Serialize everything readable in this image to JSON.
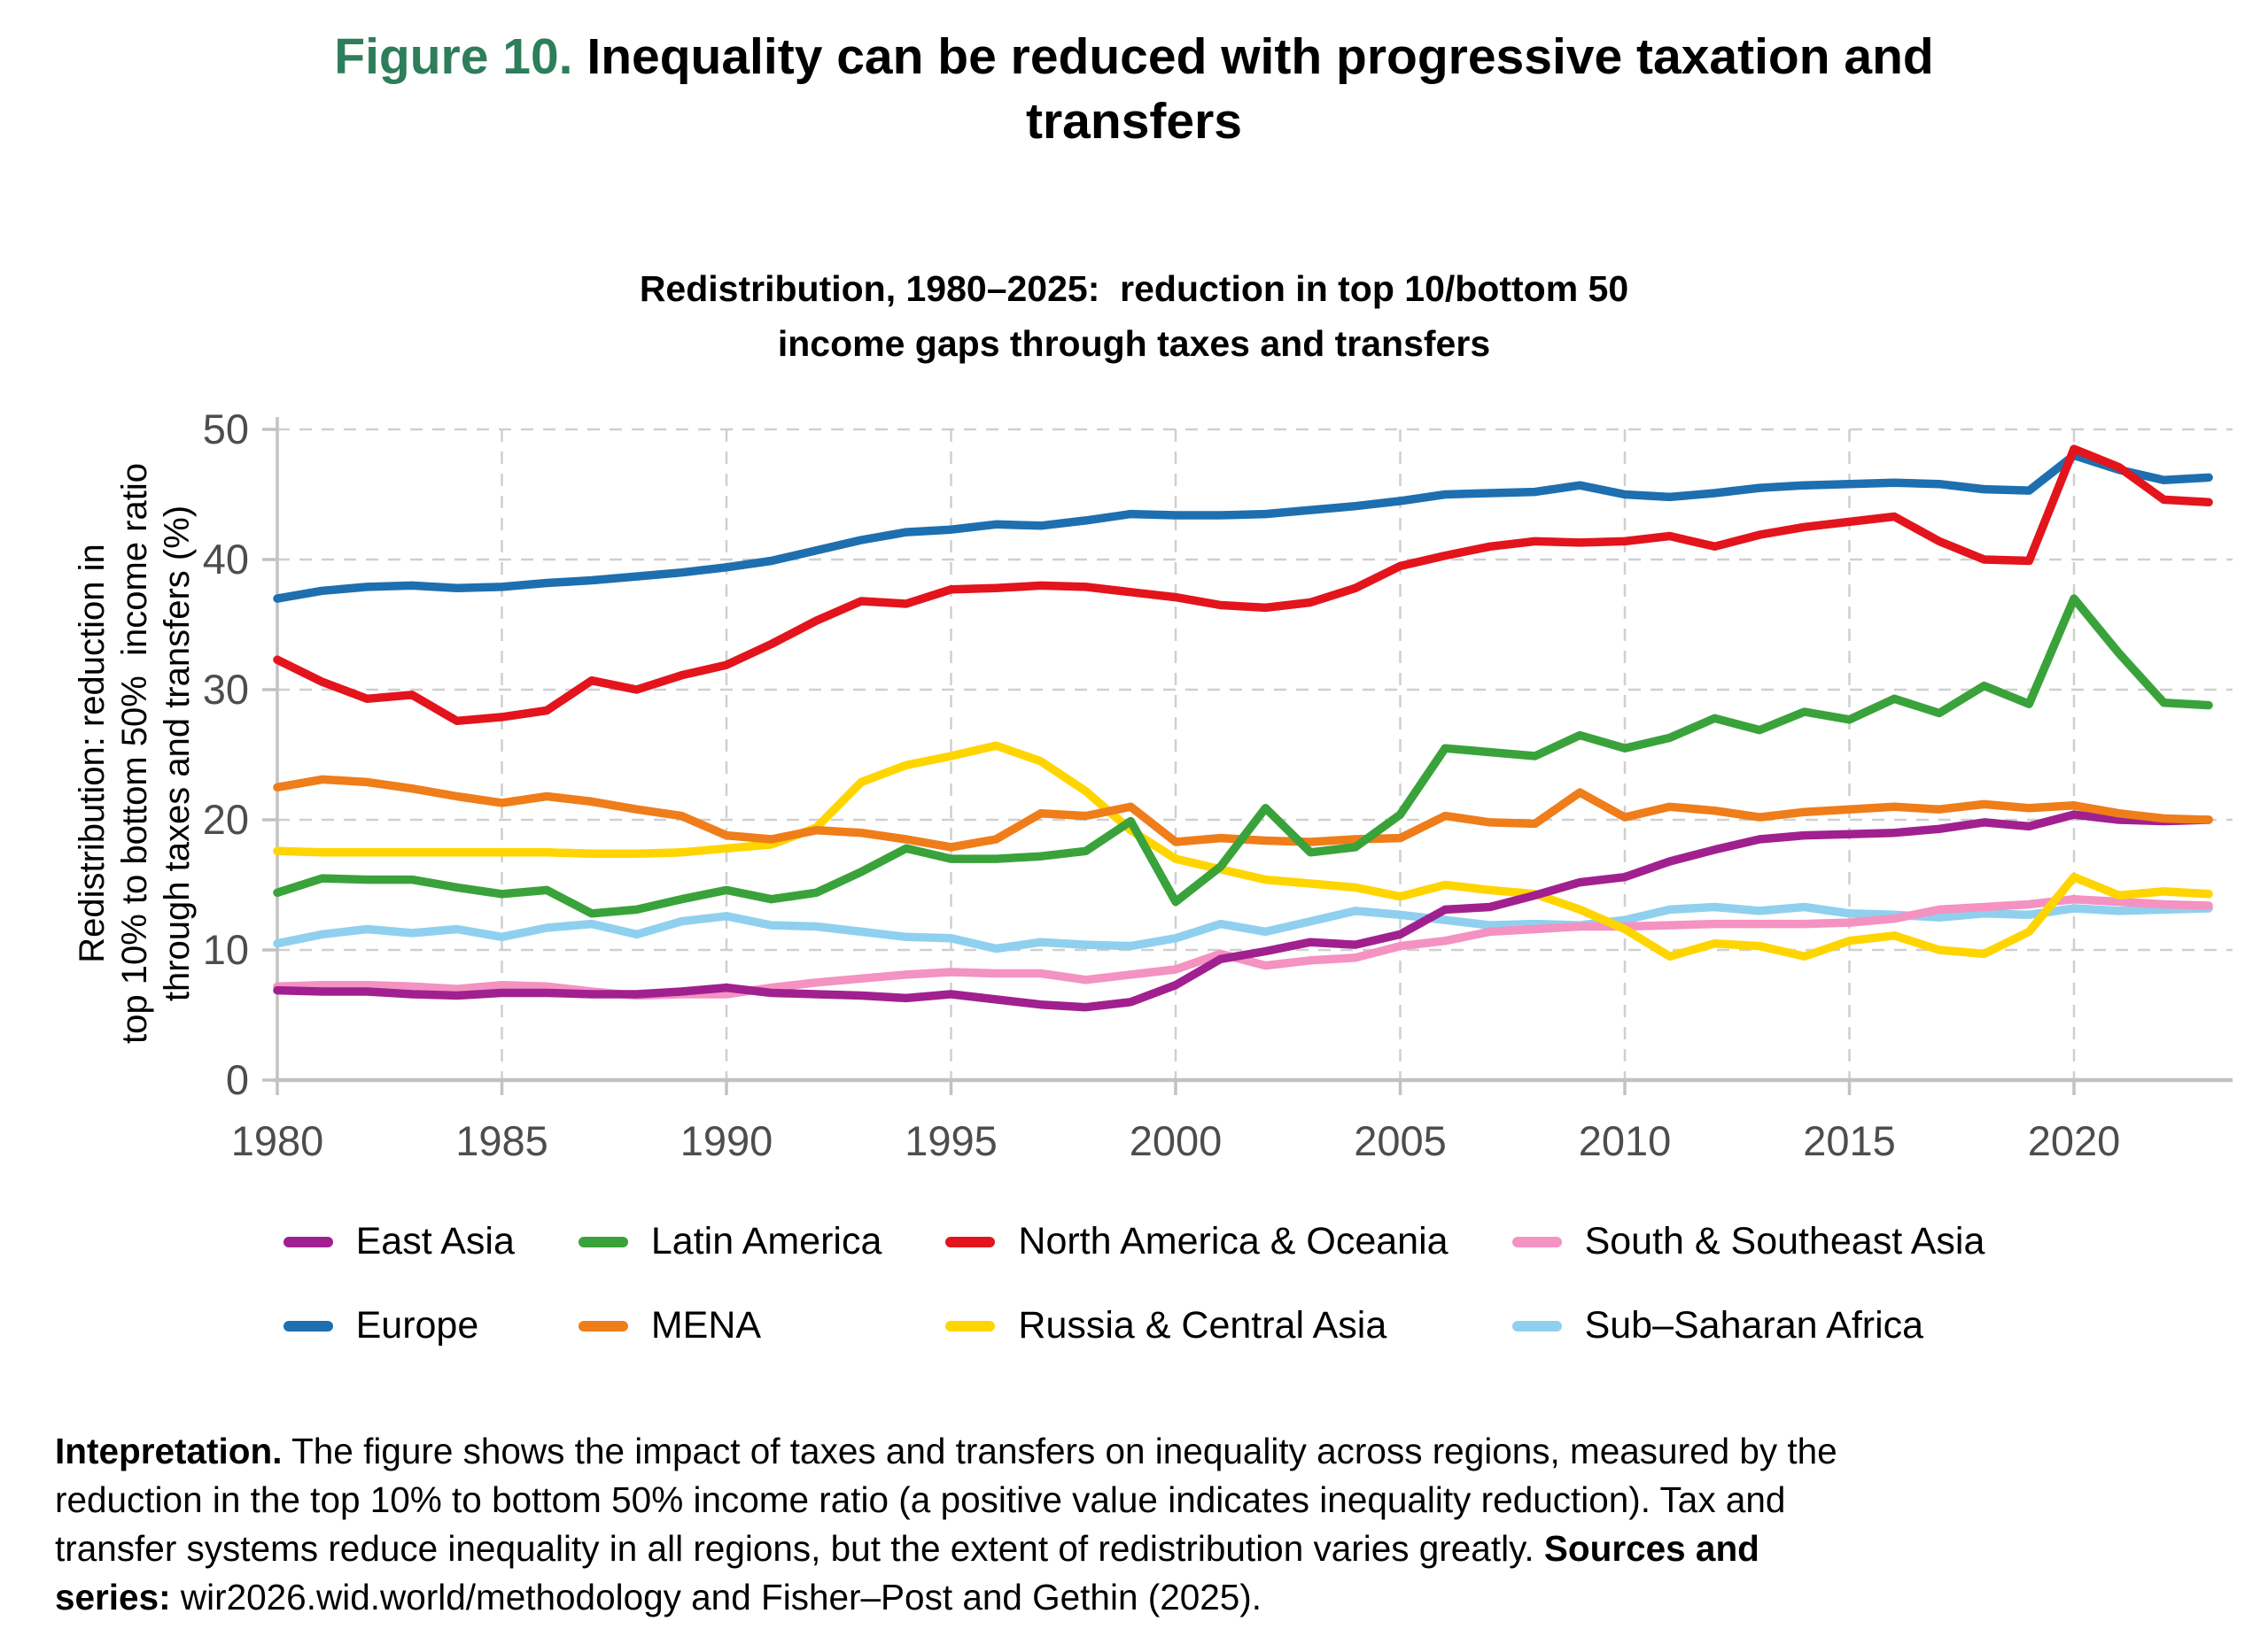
{
  "figure": {
    "label": "Figure 10.",
    "title_rest": " Inequality can be reduced with progressive taxation and\ntransfers",
    "label_color": "#2e7d5b"
  },
  "chart_data": {
    "type": "line",
    "title": "Redistribution, 1980–2025:  reduction in top 10/bottom 50\nincome gaps through taxes and transfers",
    "xlabel": "",
    "ylabel": "Redistribution: reduction in\ntop 10% to bottom 50%  income ratio\nthrough taxes and transfers (%)",
    "xlim": [
      1980,
      2023.5
    ],
    "ylim": [
      0,
      50
    ],
    "x_ticks": [
      1980,
      1985,
      1990,
      1995,
      2000,
      2005,
      2010,
      2015,
      2020
    ],
    "y_ticks": [
      0,
      10,
      20,
      30,
      40,
      50
    ],
    "grid": "dashed",
    "legend_position": "bottom",
    "colors": {
      "grid": "#cfcfcf",
      "axis": "#c2c2c2",
      "tick_label": "#4d4d4d"
    },
    "years": [
      1980,
      1981,
      1982,
      1983,
      1984,
      1985,
      1986,
      1987,
      1988,
      1989,
      1990,
      1991,
      1992,
      1993,
      1994,
      1995,
      1996,
      1997,
      1998,
      1999,
      2000,
      2001,
      2002,
      2003,
      2004,
      2005,
      2006,
      2007,
      2008,
      2009,
      2010,
      2011,
      2012,
      2013,
      2014,
      2015,
      2016,
      2017,
      2018,
      2019,
      2020,
      2021,
      2022,
      2023
    ],
    "series": [
      {
        "name": "East Asia",
        "color": "#a1208f",
        "values": [
          6.9,
          6.8,
          6.8,
          6.6,
          6.5,
          6.7,
          6.7,
          6.6,
          6.6,
          6.8,
          7.1,
          6.7,
          6.6,
          6.5,
          6.3,
          6.6,
          6.2,
          5.8,
          5.6,
          6.0,
          7.3,
          9.3,
          9.9,
          10.6,
          10.4,
          11.2,
          13.1,
          13.3,
          14.2,
          15.2,
          15.6,
          16.8,
          17.7,
          18.5,
          18.8,
          18.9,
          19.0,
          19.3,
          19.8,
          19.5,
          20.4,
          20.0,
          19.9,
          20.0
        ]
      },
      {
        "name": "Europe",
        "color": "#1d6fb0",
        "values": [
          37.0,
          37.6,
          37.9,
          38.0,
          37.8,
          37.9,
          38.2,
          38.4,
          38.7,
          39.0,
          39.4,
          39.9,
          40.7,
          41.5,
          42.1,
          42.3,
          42.7,
          42.6,
          43.0,
          43.5,
          43.4,
          43.4,
          43.5,
          43.8,
          44.1,
          44.5,
          45.0,
          45.1,
          45.2,
          45.7,
          45.0,
          44.8,
          45.1,
          45.5,
          45.7,
          45.8,
          45.9,
          45.8,
          45.4,
          45.3,
          48.0,
          46.9,
          46.1,
          46.3
        ]
      },
      {
        "name": "Latin America",
        "color": "#3aa23a",
        "values": [
          14.4,
          15.5,
          15.4,
          15.4,
          14.8,
          14.3,
          14.6,
          12.8,
          13.1,
          13.9,
          14.6,
          13.9,
          14.4,
          16.0,
          17.8,
          17.0,
          17.0,
          17.2,
          17.6,
          19.9,
          13.7,
          16.4,
          20.9,
          17.5,
          17.9,
          20.4,
          25.5,
          25.2,
          24.9,
          26.5,
          25.5,
          26.3,
          27.8,
          26.9,
          28.3,
          27.7,
          29.3,
          28.2,
          30.3,
          28.9,
          37.0,
          32.8,
          29.0,
          28.8
        ]
      },
      {
        "name": "MENA",
        "color": "#ef7d1a",
        "values": [
          22.5,
          23.1,
          22.9,
          22.4,
          21.8,
          21.3,
          21.8,
          21.4,
          20.8,
          20.3,
          18.8,
          18.5,
          19.2,
          19.0,
          18.5,
          17.9,
          18.5,
          20.5,
          20.3,
          21.0,
          18.3,
          18.6,
          18.4,
          18.3,
          18.5,
          18.6,
          20.3,
          19.8,
          19.7,
          22.1,
          20.2,
          21.0,
          20.7,
          20.2,
          20.6,
          20.8,
          21.0,
          20.8,
          21.2,
          20.9,
          21.1,
          20.5,
          20.1,
          20.0
        ]
      },
      {
        "name": "North America & Oceania",
        "color": "#e3141c",
        "values": [
          32.3,
          30.6,
          29.3,
          29.6,
          27.6,
          27.9,
          28.4,
          30.7,
          30.0,
          31.1,
          31.9,
          33.5,
          35.3,
          36.8,
          36.6,
          37.7,
          37.8,
          38.0,
          37.9,
          37.5,
          37.1,
          36.5,
          36.3,
          36.7,
          37.8,
          39.5,
          40.3,
          41.0,
          41.4,
          41.3,
          41.4,
          41.8,
          41.0,
          41.9,
          42.5,
          42.9,
          43.3,
          41.4,
          40.0,
          39.9,
          48.5,
          47.1,
          44.6,
          44.4
        ]
      },
      {
        "name": "Russia & Central Asia",
        "color": "#ffd500",
        "values": [
          17.6,
          17.5,
          17.5,
          17.5,
          17.5,
          17.5,
          17.5,
          17.4,
          17.4,
          17.5,
          17.8,
          18.1,
          19.4,
          22.9,
          24.2,
          24.9,
          25.7,
          24.5,
          22.2,
          19.2,
          17.0,
          16.2,
          15.4,
          15.1,
          14.8,
          14.1,
          15.0,
          14.6,
          14.3,
          13.1,
          11.6,
          9.5,
          10.5,
          10.3,
          9.5,
          10.7,
          11.1,
          10.0,
          9.7,
          11.4,
          15.6,
          14.2,
          14.5,
          14.3
        ]
      },
      {
        "name": "South & Southeast Asia",
        "color": "#f492c2",
        "values": [
          7.2,
          7.3,
          7.3,
          7.2,
          7.0,
          7.3,
          7.2,
          6.8,
          6.5,
          6.6,
          6.6,
          7.1,
          7.5,
          7.8,
          8.1,
          8.3,
          8.2,
          8.2,
          7.7,
          8.1,
          8.5,
          9.7,
          8.8,
          9.2,
          9.4,
          10.3,
          10.7,
          11.4,
          11.6,
          11.8,
          11.8,
          11.9,
          12.0,
          12.0,
          12.0,
          12.1,
          12.4,
          13.1,
          13.3,
          13.5,
          13.9,
          13.7,
          13.5,
          13.4
        ]
      },
      {
        "name": "Sub–Saharan Africa",
        "color": "#8fd0ee",
        "values": [
          10.5,
          11.2,
          11.6,
          11.3,
          11.6,
          11.0,
          11.7,
          12.0,
          11.2,
          12.2,
          12.6,
          11.9,
          11.8,
          11.4,
          11.0,
          10.9,
          10.1,
          10.6,
          10.4,
          10.3,
          10.9,
          12.0,
          11.4,
          12.2,
          13.0,
          12.7,
          12.3,
          11.9,
          12.0,
          11.9,
          12.3,
          13.1,
          13.3,
          13.0,
          13.3,
          12.8,
          12.7,
          12.5,
          12.8,
          12.7,
          13.2,
          13.0,
          13.1,
          13.2
        ]
      }
    ],
    "draw_order": [
      "Sub–Saharan Africa",
      "South & Southeast Asia",
      "Russia & Central Asia",
      "East Asia",
      "MENA",
      "Latin America",
      "Europe",
      "North America & Oceania"
    ]
  },
  "caption": {
    "lines": [
      [
        {
          "t": "Intepretation.",
          "b": true
        },
        {
          "t": " The figure shows the impact of taxes and transfers on inequality across regions, measured by the",
          "b": false
        }
      ],
      [
        {
          "t": "reduction in the top 10% to bottom 50% income ratio (a positive value indicates inequality reduction). Tax and",
          "b": false
        }
      ],
      [
        {
          "t": "transfer systems reduce inequality in all regions, but the extent of redistribution varies greatly. ",
          "b": false
        },
        {
          "t": "Sources and",
          "b": true
        }
      ],
      [
        {
          "t": "series:",
          "b": true
        },
        {
          "t": " wir2026.wid.world/methodology and Fisher–Post and Gethin (2025).",
          "b": false
        }
      ]
    ]
  }
}
